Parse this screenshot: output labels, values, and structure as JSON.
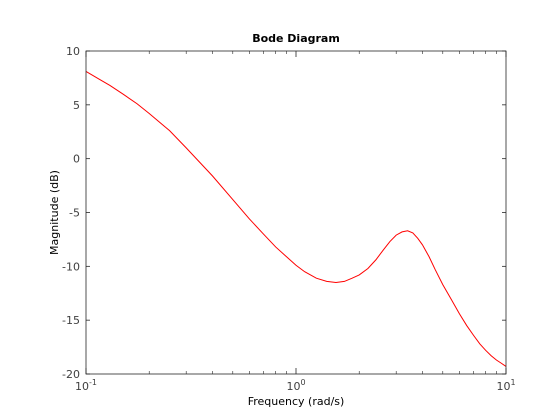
{
  "chart_data": {
    "type": "line",
    "title": "Bode Diagram",
    "xlabel": "Frequency  (rad/s)",
    "ylabel": "Magnitude (dB)",
    "xscale": "log",
    "xlim": [
      0.1,
      10
    ],
    "ylim": [
      -20,
      10
    ],
    "grid": false,
    "x_ticks": [
      {
        "value": 0.1,
        "base": "10",
        "exp": "-1"
      },
      {
        "value": 1,
        "base": "10",
        "exp": "0"
      },
      {
        "value": 10,
        "base": "10",
        "exp": "1"
      }
    ],
    "y_ticks": [
      -20,
      -15,
      -10,
      -5,
      0,
      5,
      10
    ],
    "series": [
      {
        "color": "#ff0000",
        "x": [
          0.1,
          0.115,
          0.13,
          0.15,
          0.175,
          0.2,
          0.25,
          0.3,
          0.4,
          0.5,
          0.6,
          0.7,
          0.8,
          0.9,
          1.0,
          1.1,
          1.25,
          1.4,
          1.55,
          1.7,
          1.85,
          2.0,
          2.2,
          2.4,
          2.6,
          2.8,
          3.0,
          3.2,
          3.4,
          3.6,
          3.8,
          4.0,
          4.3,
          4.6,
          5.0,
          5.5,
          6.0,
          6.5,
          7.0,
          7.5,
          8.0,
          8.5,
          9.0,
          9.5,
          10.0
        ],
        "y": [
          8.1,
          7.4,
          6.8,
          6.0,
          5.1,
          4.2,
          2.6,
          1.0,
          -1.6,
          -3.8,
          -5.6,
          -7.0,
          -8.2,
          -9.1,
          -9.9,
          -10.5,
          -11.1,
          -11.4,
          -11.5,
          -11.4,
          -11.1,
          -10.8,
          -10.2,
          -9.4,
          -8.5,
          -7.7,
          -7.1,
          -6.8,
          -6.7,
          -6.9,
          -7.4,
          -8.0,
          -9.1,
          -10.3,
          -11.7,
          -13.1,
          -14.4,
          -15.5,
          -16.4,
          -17.2,
          -17.8,
          -18.3,
          -18.7,
          -19.0,
          -19.3
        ]
      }
    ]
  }
}
